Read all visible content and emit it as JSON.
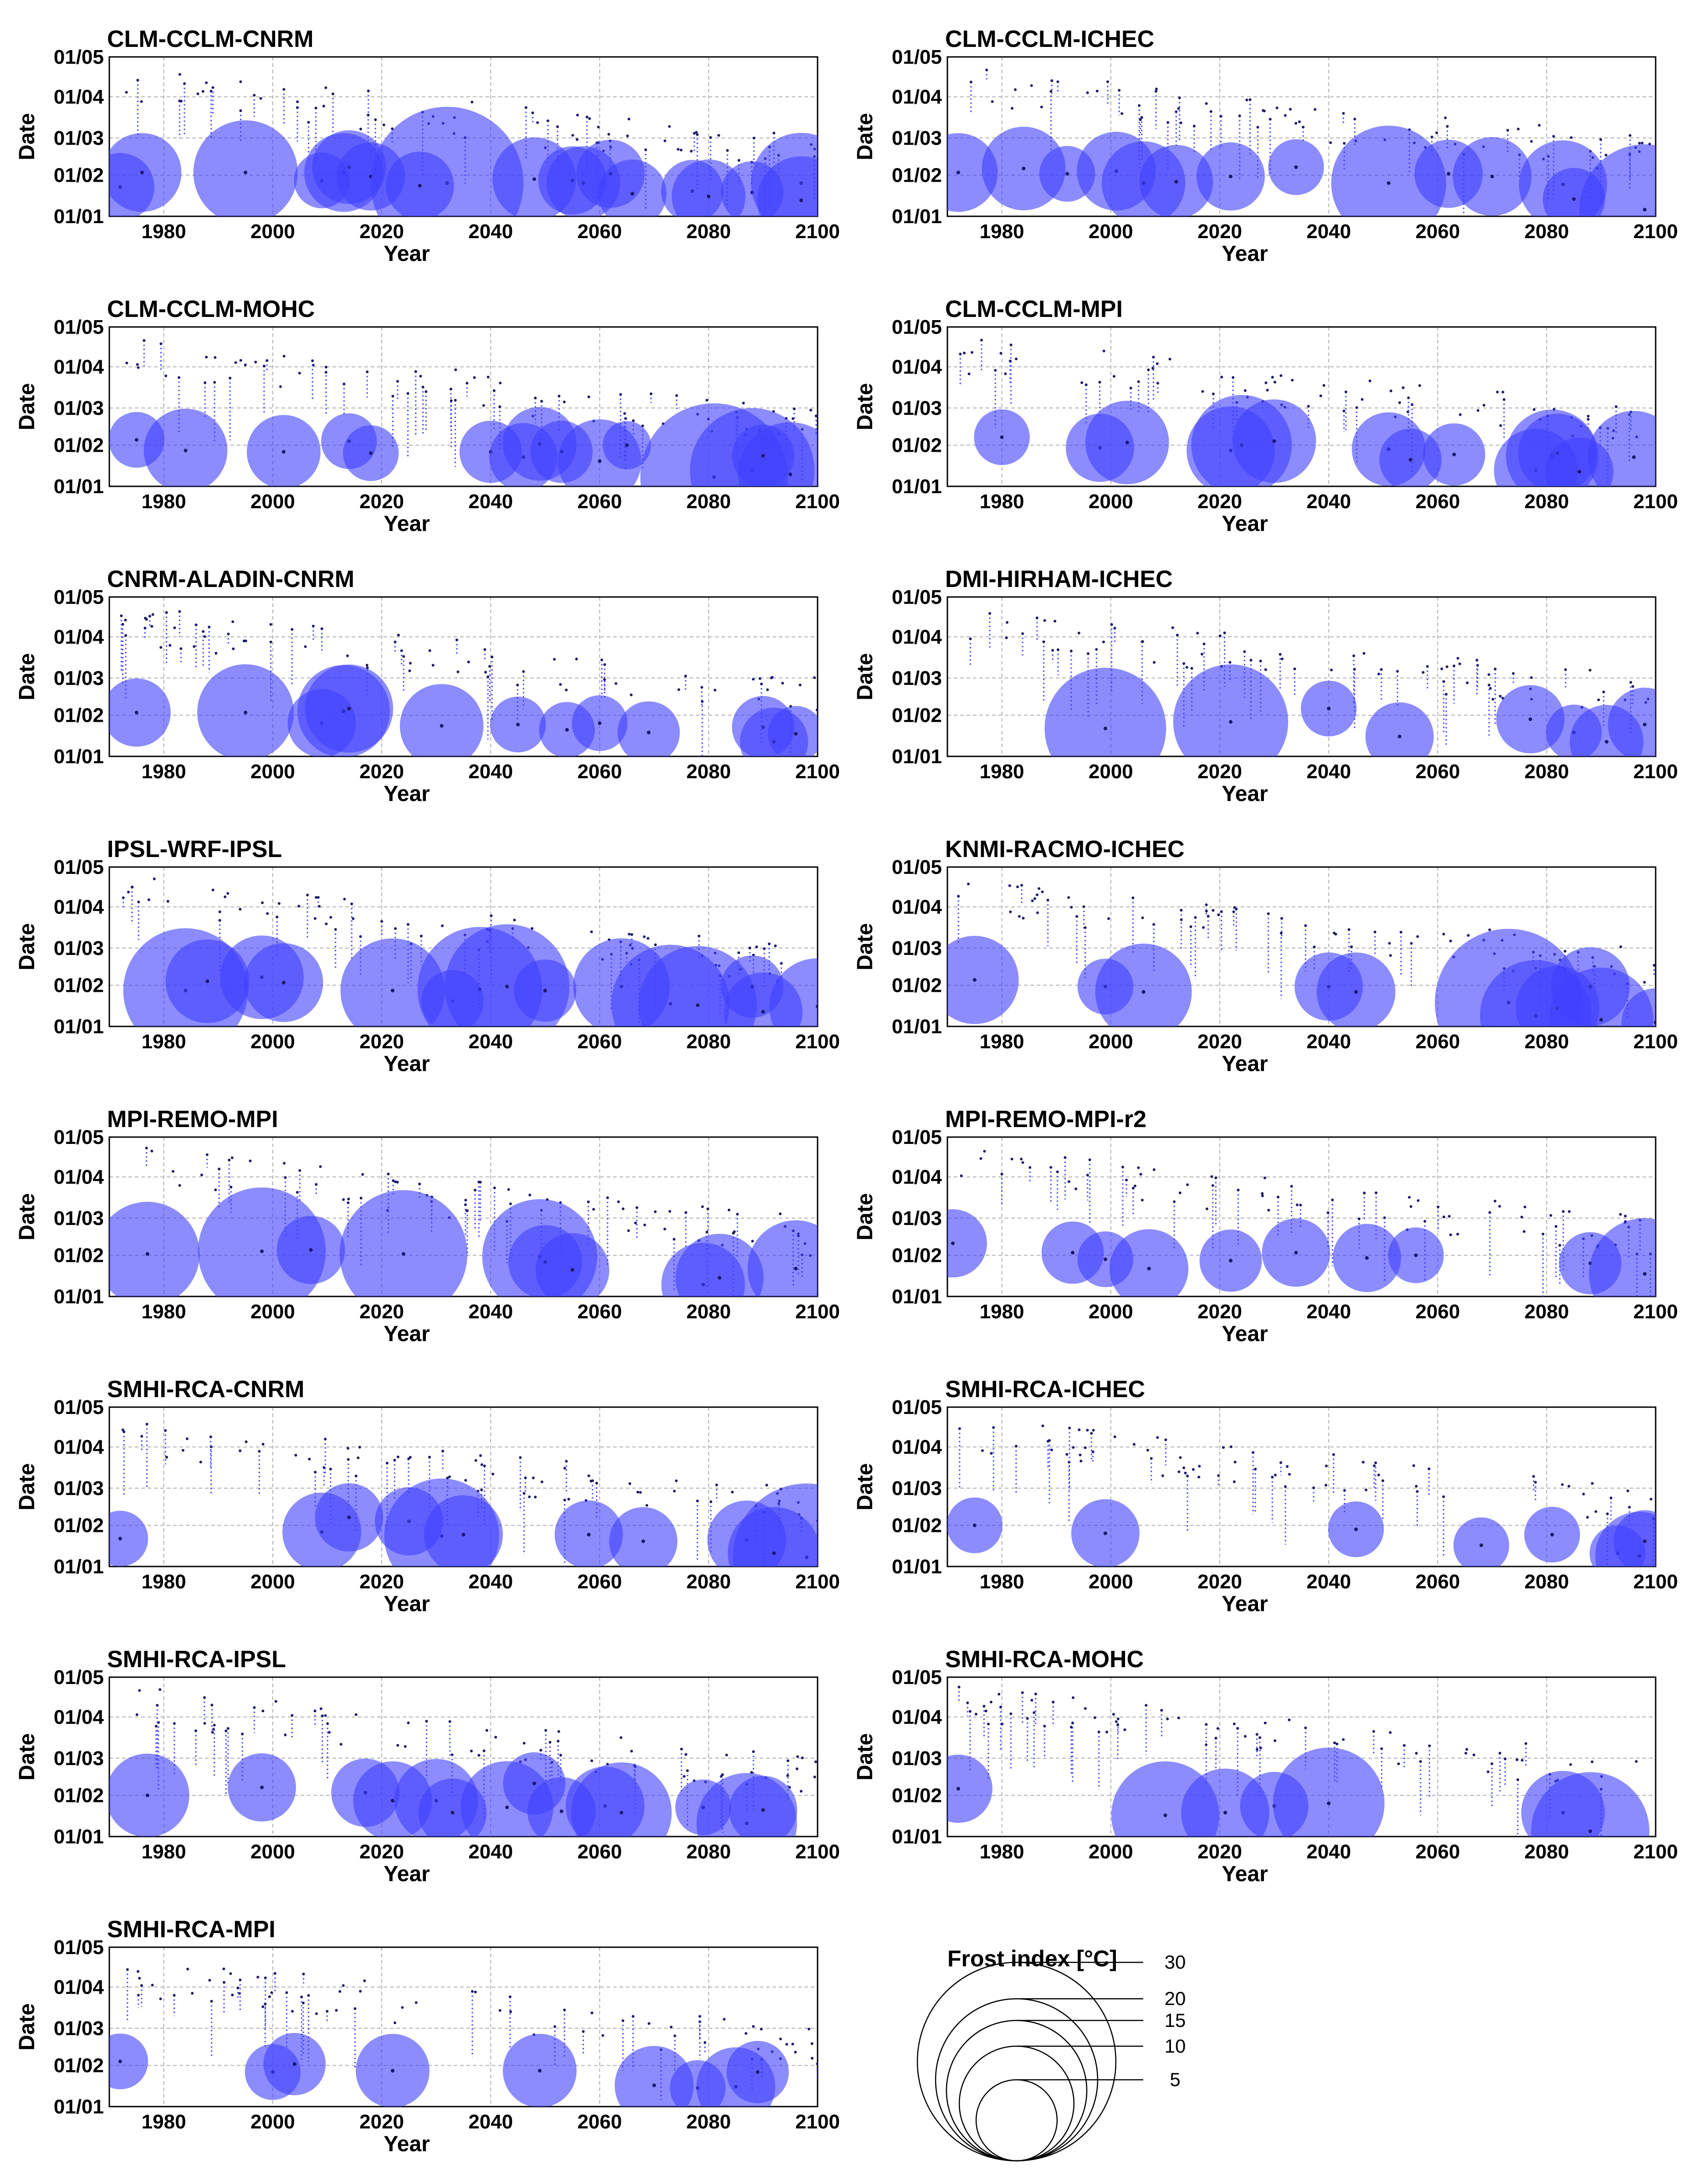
{
  "chart_data": {
    "type": "scatter",
    "figure_kind": "small-multiples bubble plot",
    "xlabel": "Year",
    "ylabel": "Date",
    "xlim": [
      1970,
      2100
    ],
    "x_ticks": [
      1980,
      2000,
      2020,
      2040,
      2060,
      2080,
      2100
    ],
    "ylim_day_offset_from_01_01": [
      0,
      120
    ],
    "y_ticks": [
      {
        "label": "01/01",
        "day": 0
      },
      {
        "label": "01/02",
        "day": 31
      },
      {
        "label": "01/03",
        "day": 59
      },
      {
        "label": "01/04",
        "day": 90
      },
      {
        "label": "01/05",
        "day": 120
      }
    ],
    "grid": true,
    "bubble_color": "#4040ff",
    "legend": {
      "title": "Frost index [°C]",
      "values": [
        30,
        20,
        15,
        10,
        5
      ],
      "placement": "bottom-right"
    },
    "panels": [
      {
        "title": "CLM-CCLM-CNRM",
        "bubbles": [
          [
            1972,
            22,
            6
          ],
          [
            1976,
            33,
            8
          ],
          [
            1995,
            33,
            14
          ],
          [
            2009,
            27,
            4
          ],
          [
            2013,
            33,
            8
          ],
          [
            2014,
            37,
            7
          ],
          [
            2018,
            30,
            6
          ],
          [
            2032,
            25,
            30
          ],
          [
            2027,
            23,
            6
          ],
          [
            2048,
            28,
            9
          ],
          [
            2055,
            27,
            6
          ],
          [
            2057,
            25,
            7
          ],
          [
            2062,
            32,
            6
          ],
          [
            2066,
            17,
            6
          ],
          [
            2077,
            19,
            5
          ],
          [
            2080,
            15,
            7
          ],
          [
            2088,
            18,
            5
          ],
          [
            2097,
            25,
            13
          ],
          [
            2097,
            12,
            10
          ]
        ]
      },
      {
        "title": "CLM-CCLM-ICHEC",
        "bubbles": [
          [
            1972,
            33,
            8
          ],
          [
            1984,
            36,
            9
          ],
          [
            1992,
            32,
            4
          ],
          [
            2001,
            34,
            8
          ],
          [
            2006,
            25,
            9
          ],
          [
            2012,
            26,
            7
          ],
          [
            2022,
            30,
            6
          ],
          [
            2034,
            37,
            4
          ],
          [
            2051,
            25,
            17
          ],
          [
            2062,
            32,
            6
          ],
          [
            2070,
            30,
            8
          ],
          [
            2083,
            24,
            10
          ],
          [
            2098,
            5,
            22
          ],
          [
            2085,
            13,
            5
          ]
        ]
      },
      {
        "title": "CLM-CCLM-MOHC",
        "bubbles": [
          [
            1975,
            35,
            4
          ],
          [
            1984,
            27,
            9
          ],
          [
            2002,
            26,
            7
          ],
          [
            2014,
            34,
            4
          ],
          [
            2018,
            25,
            4
          ],
          [
            2040,
            26,
            5
          ],
          [
            2046,
            22,
            6
          ],
          [
            2049,
            32,
            7
          ],
          [
            2053,
            26,
            5
          ],
          [
            2060,
            19,
            9
          ],
          [
            2065,
            31,
            3
          ],
          [
            2081,
            7,
            28
          ],
          [
            2088,
            12,
            20
          ],
          [
            2095,
            9,
            14
          ],
          [
            2090,
            23,
            5
          ]
        ]
      },
      {
        "title": "CLM-CCLM-MPI",
        "bubbles": [
          [
            1980,
            37,
            4
          ],
          [
            1998,
            29,
            6
          ],
          [
            2003,
            33,
            9
          ],
          [
            2022,
            27,
            10
          ],
          [
            2024,
            31,
            13
          ],
          [
            2030,
            34,
            9
          ],
          [
            2051,
            28,
            7
          ],
          [
            2055,
            20,
            5
          ],
          [
            2063,
            24,
            5
          ],
          [
            2078,
            12,
            9
          ],
          [
            2081,
            23,
            11
          ],
          [
            2082,
            25,
            8
          ],
          [
            2086,
            11,
            6
          ],
          [
            2096,
            22,
            11
          ]
        ]
      },
      {
        "title": "CNRM-ALADIN-CNRM",
        "bubbles": [
          [
            1975,
            33,
            6
          ],
          [
            1995,
            33,
            12
          ],
          [
            2009,
            25,
            6
          ],
          [
            2013,
            34,
            11
          ],
          [
            2014,
            36,
            10
          ],
          [
            2031,
            23,
            9
          ],
          [
            2045,
            24,
            4
          ],
          [
            2054,
            20,
            4
          ],
          [
            2060,
            25,
            4
          ],
          [
            2069,
            18,
            5
          ],
          [
            2090,
            22,
            5
          ],
          [
            2092,
            11,
            6
          ],
          [
            2096,
            17,
            4
          ]
        ]
      },
      {
        "title": "DMI-HIRHAM-ICHEC",
        "bubbles": [
          [
            1999,
            21,
            19
          ],
          [
            2022,
            26,
            17
          ],
          [
            2040,
            36,
            4
          ],
          [
            2053,
            15,
            6
          ],
          [
            2077,
            28,
            6
          ],
          [
            2085,
            18,
            4
          ],
          [
            2091,
            11,
            7
          ],
          [
            2098,
            24,
            7
          ]
        ]
      },
      {
        "title": "IPSL-WRF-IPSL",
        "bubbles": [
          [
            1984,
            27,
            20
          ],
          [
            1988,
            34,
            9
          ],
          [
            1998,
            37,
            9
          ],
          [
            2002,
            33,
            8
          ],
          [
            2022,
            27,
            14
          ],
          [
            2033,
            19,
            5
          ],
          [
            2038,
            28,
            20
          ],
          [
            2043,
            30,
            20
          ],
          [
            2050,
            27,
            5
          ],
          [
            2064,
            30,
            12
          ],
          [
            2073,
            17,
            18
          ],
          [
            2078,
            16,
            18
          ],
          [
            2088,
            30,
            5
          ],
          [
            2090,
            11,
            8
          ],
          [
            2100,
            15,
            12
          ]
        ]
      },
      {
        "title": "KNMI-RACMO-ICHEC",
        "bubbles": [
          [
            1975,
            35,
            10
          ],
          [
            1999,
            30,
            4
          ],
          [
            2006,
            26,
            12
          ],
          [
            2040,
            30,
            6
          ],
          [
            2045,
            26,
            8
          ],
          [
            2073,
            18,
            28
          ],
          [
            2078,
            8,
            16
          ],
          [
            2082,
            14,
            9
          ],
          [
            2088,
            30,
            8
          ],
          [
            2090,
            5,
            14
          ],
          [
            2100,
            3,
            6
          ]
        ]
      },
      {
        "title": "MPI-REMO-MPI",
        "bubbles": [
          [
            1977,
            32,
            14
          ],
          [
            1998,
            34,
            21
          ],
          [
            2007,
            35,
            6
          ],
          [
            2024,
            32,
            21
          ],
          [
            2049,
            30,
            17
          ],
          [
            2050,
            26,
            7
          ],
          [
            2055,
            20,
            7
          ],
          [
            2079,
            9,
            9
          ],
          [
            2082,
            14,
            10
          ],
          [
            2096,
            21,
            12
          ]
        ]
      },
      {
        "title": "MPI-REMO-MPI-r2",
        "bubbles": [
          [
            1971,
            40,
            6
          ],
          [
            1993,
            33,
            5
          ],
          [
            1999,
            28,
            4
          ],
          [
            2007,
            21,
            8
          ],
          [
            2022,
            27,
            5
          ],
          [
            2034,
            33,
            6
          ],
          [
            2047,
            29,
            6
          ],
          [
            2056,
            31,
            4
          ],
          [
            2088,
            25,
            5
          ],
          [
            2098,
            17,
            16
          ]
        ]
      },
      {
        "title": "SMHI-RCA-CNRM",
        "bubbles": [
          [
            1972,
            21,
            4
          ],
          [
            2009,
            26,
            8
          ],
          [
            2014,
            37,
            6
          ],
          [
            2025,
            34,
            6
          ],
          [
            2031,
            23,
            17
          ],
          [
            2035,
            24,
            8
          ],
          [
            2058,
            24,
            6
          ],
          [
            2068,
            19,
            6
          ],
          [
            2087,
            20,
            8
          ],
          [
            2098,
            7,
            28
          ],
          [
            2092,
            10,
            11
          ]
        ]
      },
      {
        "title": "SMHI-RCA-ICHEC",
        "bubbles": [
          [
            1975,
            31,
            4
          ],
          [
            1999,
            25,
            6
          ],
          [
            2045,
            28,
            4
          ],
          [
            2068,
            16,
            4
          ],
          [
            2081,
            24,
            4
          ],
          [
            2093,
            10,
            4
          ],
          [
            2097,
            8,
            10
          ],
          [
            2098,
            19,
            5
          ]
        ]
      },
      {
        "title": "SMHI-RCA-IPSL",
        "bubbles": [
          [
            1977,
            31,
            9
          ],
          [
            1998,
            37,
            6
          ],
          [
            2017,
            33,
            6
          ],
          [
            2022,
            27,
            8
          ],
          [
            2030,
            27,
            9
          ],
          [
            2033,
            18,
            6
          ],
          [
            2043,
            22,
            11
          ],
          [
            2048,
            40,
            5
          ],
          [
            2053,
            19,
            6
          ],
          [
            2061,
            23,
            8
          ],
          [
            2064,
            18,
            13
          ],
          [
            2079,
            22,
            4
          ],
          [
            2087,
            10,
            13
          ],
          [
            2090,
            20,
            6
          ]
        ]
      },
      {
        "title": "SMHI-RCA-MOHC",
        "bubbles": [
          [
            1972,
            36,
            6
          ],
          [
            2010,
            16,
            15
          ],
          [
            2021,
            18,
            10
          ],
          [
            2030,
            23,
            6
          ],
          [
            2040,
            25,
            16
          ],
          [
            2083,
            18,
            9
          ],
          [
            2088,
            4,
            18
          ]
        ]
      },
      {
        "title": "SMHI-RCA-MPI",
        "bubbles": [
          [
            1972,
            34,
            4
          ],
          [
            2000,
            26,
            4
          ],
          [
            2004,
            32,
            5
          ],
          [
            2022,
            27,
            7
          ],
          [
            2049,
            27,
            7
          ],
          [
            2070,
            16,
            8
          ],
          [
            2078,
            14,
            4
          ],
          [
            2085,
            15,
            8
          ],
          [
            2089,
            26,
            5
          ]
        ]
      }
    ]
  }
}
